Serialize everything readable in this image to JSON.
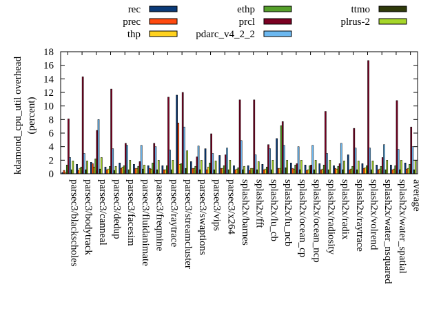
{
  "chart_data": {
    "type": "bar",
    "ylabel": "kdamond_cpu_util overhead (percent)",
    "ylabel_lines": [
      "kdamond_cpu_util overhead",
      "(percent)"
    ],
    "ylim": [
      0,
      18
    ],
    "yticks": [
      0,
      2,
      4,
      6,
      8,
      10,
      12,
      14,
      16,
      18
    ],
    "grid": false,
    "legend_position": "top",
    "categories": [
      "parsec3/blackscholes",
      "parsec3/bodytrack",
      "parsec3/canneal",
      "parsec3/dedup",
      "parsec3/facesim",
      "parsec3/fluidanimate",
      "parsec3/freqmine",
      "parsec3/raytrace",
      "parsec3/streamcluster",
      "parsec3/swaptions",
      "parsec3/vips",
      "parsec3/x264",
      "splash2x/barnes",
      "splash2x/fft",
      "splash2x/lu_cb",
      "splash2x/lu_ncb",
      "splash2x/ocean_cp",
      "splash2x/ocean_ncp",
      "splash2x/radiosity",
      "splash2x/radix",
      "splash2x/raytrace",
      "splash2x/volrend",
      "splash2x/water_nsquared",
      "splash2x/water_spatial",
      "average"
    ],
    "series": [
      {
        "name": "rec",
        "color": "#0a3a78",
        "values": [
          0.2,
          1.4,
          1.7,
          1.0,
          1.6,
          1.4,
          1.2,
          1.2,
          11.6,
          1.8,
          3.7,
          2.7,
          1.2,
          1.2,
          1.4,
          5.2,
          1.6,
          1.3,
          1.5,
          1.2,
          2.8,
          1.5,
          1.3,
          1.3,
          1.6
        ]
      },
      {
        "name": "prec",
        "color": "#ff4a10",
        "values": [
          0.5,
          0.5,
          1.5,
          0.6,
          0.8,
          0.8,
          0.8,
          0.6,
          7.5,
          0.8,
          0.6,
          0.8,
          0.6,
          0.5,
          0.6,
          0.8,
          0.8,
          0.5,
          0.6,
          0.8,
          0.6,
          0.8,
          0.6,
          0.6,
          0.7
        ]
      },
      {
        "name": "thp",
        "color": "#ffd21f",
        "values": [
          0.2,
          0.8,
          1.0,
          0.7,
          1.0,
          0.8,
          0.7,
          0.6,
          1.4,
          0.8,
          1.0,
          0.8,
          0.7,
          0.8,
          0.7,
          0.8,
          0.7,
          0.6,
          0.7,
          0.7,
          0.7,
          0.9,
          0.7,
          0.7,
          0.8
        ]
      },
      {
        "name": "ethp",
        "color": "#55a02a",
        "values": [
          1.3,
          1.0,
          2.2,
          1.1,
          1.2,
          1.1,
          1.6,
          1.2,
          1.5,
          1.1,
          1.6,
          1.2,
          0.9,
          0.8,
          1.0,
          7.1,
          1.3,
          1.2,
          1.3,
          1.1,
          1.1,
          1.2,
          1.1,
          1.2,
          1.4
        ]
      },
      {
        "name": "prcl",
        "color": "#7a0022",
        "values": [
          8.1,
          14.3,
          6.4,
          12.5,
          4.5,
          1.8,
          4.5,
          11.3,
          12.0,
          2.5,
          5.9,
          2.8,
          10.9,
          10.9,
          4.3,
          7.7,
          1.5,
          1.3,
          9.2,
          1.5,
          6.7,
          16.7,
          2.4,
          10.8,
          6.9
        ]
      },
      {
        "name": "pdarc_v4_2_2",
        "color": "#6cb8f0",
        "values": [
          2.4,
          3.0,
          8.0,
          3.7,
          4.2,
          4.2,
          4.0,
          3.5,
          6.9,
          4.1,
          3.0,
          3.8,
          4.9,
          2.8,
          3.7,
          4.2,
          4.0,
          4.2,
          3.0,
          4.5,
          3.8,
          3.8,
          4.3,
          3.6,
          4.0
        ]
      },
      {
        "name": "ttmo",
        "color": "#2f3a0a",
        "values": [
          0.6,
          0.6,
          0.7,
          0.5,
          0.6,
          0.7,
          0.6,
          0.6,
          0.8,
          0.6,
          0.6,
          0.6,
          0.6,
          0.6,
          0.6,
          0.9,
          0.6,
          0.6,
          0.6,
          0.6,
          0.6,
          0.6,
          0.6,
          0.6,
          0.6
        ]
      },
      {
        "name": "plrus-2",
        "color": "#a6d62a",
        "values": [
          1.9,
          1.9,
          2.4,
          1.1,
          2.0,
          1.3,
          2.0,
          2.0,
          3.4,
          2.0,
          1.9,
          2.0,
          1.1,
          1.8,
          2.0,
          2.0,
          2.0,
          2.0,
          2.0,
          1.9,
          1.9,
          1.9,
          2.0,
          2.0,
          2.0
        ]
      }
    ]
  }
}
